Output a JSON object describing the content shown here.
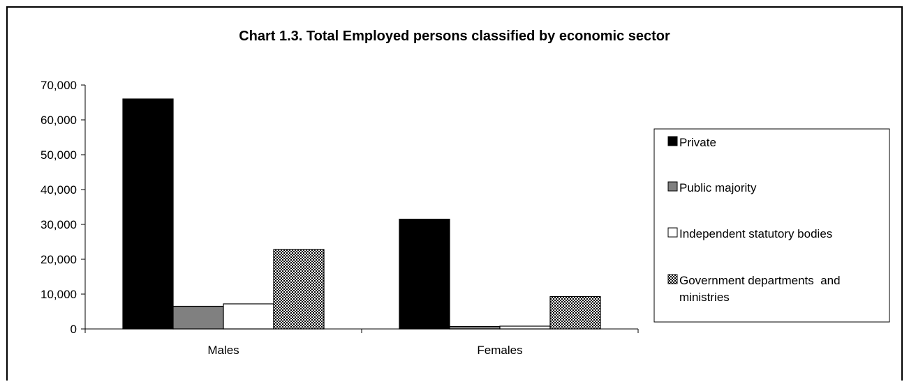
{
  "chart_data": {
    "type": "bar",
    "title": "Chart 1.3. Total Employed persons classified by economic sector",
    "categories": [
      "Males",
      "Females"
    ],
    "series": [
      {
        "name": "Private",
        "values": [
          66000,
          31500
        ]
      },
      {
        "name": "Public majority",
        "values": [
          6500,
          700
        ]
      },
      {
        "name": "Independent statutory bodies",
        "values": [
          7200,
          800
        ]
      },
      {
        "name": "Government departments  and ministries",
        "values": [
          22800,
          9300
        ]
      }
    ],
    "ylim": [
      0,
      70000
    ],
    "yticks": [
      0,
      10000,
      20000,
      30000,
      40000,
      50000,
      60000,
      70000
    ],
    "ytick_labels": [
      "0",
      "10,000",
      "20,000",
      "30,000",
      "40,000",
      "50,000",
      "60,000",
      "70,000"
    ],
    "xlabel": "",
    "ylabel": "",
    "grid": false,
    "legend_position": "right",
    "legend_lines": [
      [
        "Private"
      ],
      [
        "Public majority"
      ],
      [
        "Independent statutory bodies"
      ],
      [
        "Government departments  and",
        "ministries"
      ]
    ],
    "fills": [
      "#000000",
      "#808080",
      "#ffffff",
      "checker"
    ]
  }
}
